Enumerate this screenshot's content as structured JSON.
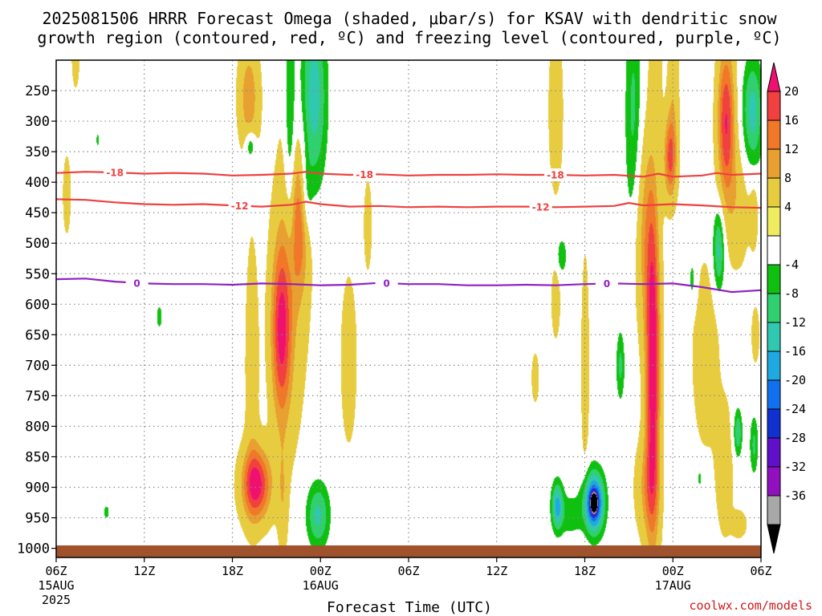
{
  "chart_data": {
    "type": "heatmap",
    "title_line1": "2025081506 HRRR Forecast Omega (shaded, μbar/s) for KSAV with dendritic snow",
    "title_line2": "growth region (contoured, red, ºC) and freezing level (contoured, purple, ºC)",
    "xlabel": "Forecast Time (UTC)",
    "credit": "coolwx.com/models",
    "y_ticks": [
      250,
      300,
      350,
      400,
      450,
      500,
      550,
      600,
      650,
      700,
      750,
      800,
      850,
      900,
      950,
      1000
    ],
    "y_range_hpa": [
      200,
      1015
    ],
    "x_range_hours": [
      0,
      48
    ],
    "x_ticks": [
      {
        "hour": 0,
        "label": "06Z",
        "sub1": "15AUG",
        "sub2": "2025"
      },
      {
        "hour": 6,
        "label": "12Z",
        "sub1": "",
        "sub2": ""
      },
      {
        "hour": 12,
        "label": "18Z",
        "sub1": "",
        "sub2": ""
      },
      {
        "hour": 18,
        "label": "00Z",
        "sub1": "16AUG",
        "sub2": ""
      },
      {
        "hour": 24,
        "label": "06Z",
        "sub1": "",
        "sub2": ""
      },
      {
        "hour": 30,
        "label": "12Z",
        "sub1": "",
        "sub2": ""
      },
      {
        "hour": 36,
        "label": "18Z",
        "sub1": "",
        "sub2": ""
      },
      {
        "hour": 42,
        "label": "00Z",
        "sub1": "17AUG",
        "sub2": ""
      },
      {
        "hour": 48,
        "label": "06Z",
        "sub1": "",
        "sub2": ""
      }
    ],
    "colorbar": {
      "labels": [
        "20",
        "16",
        "12",
        "8",
        "4",
        "-4",
        "-8",
        "-12",
        "-16",
        "-20",
        "-24",
        "-28",
        "-32",
        "-36"
      ],
      "colors": [
        "#f01070",
        "#f04040",
        "#f07828",
        "#e8a030",
        "#e8cc40",
        "#f0ec60",
        "#ffffff",
        "#10c010",
        "#30d070",
        "#30c8b0",
        "#20a8e0",
        "#1070f0",
        "#1030d0",
        "#6010c8",
        "#9010c0",
        "#a8a8a8",
        "#000000"
      ]
    },
    "contours": [
      {
        "name": "-18",
        "color": "#ee4040",
        "points": [
          [
            0,
            385
          ],
          [
            2,
            383
          ],
          [
            4,
            384
          ],
          [
            6,
            386
          ],
          [
            8,
            385
          ],
          [
            10,
            386
          ],
          [
            12,
            389
          ],
          [
            14,
            388
          ],
          [
            16,
            386
          ],
          [
            17,
            383
          ],
          [
            18,
            386
          ],
          [
            20,
            388
          ],
          [
            22,
            387
          ],
          [
            24,
            389
          ],
          [
            26,
            388
          ],
          [
            28,
            388
          ],
          [
            30,
            387
          ],
          [
            32,
            388
          ],
          [
            34,
            388
          ],
          [
            36,
            389
          ],
          [
            38,
            388
          ],
          [
            40,
            391
          ],
          [
            41,
            386
          ],
          [
            42,
            391
          ],
          [
            44,
            389
          ],
          [
            45,
            385
          ],
          [
            46,
            388
          ],
          [
            48,
            386
          ]
        ],
        "labels_at_hour": [
          4,
          21,
          34
        ]
      },
      {
        "name": "-12",
        "color": "#ee4040",
        "points": [
          [
            0,
            428
          ],
          [
            2,
            429
          ],
          [
            4,
            433
          ],
          [
            6,
            436
          ],
          [
            8,
            437
          ],
          [
            10,
            436
          ],
          [
            12,
            438
          ],
          [
            14,
            440
          ],
          [
            16,
            437
          ],
          [
            17,
            432
          ],
          [
            18,
            436
          ],
          [
            20,
            440
          ],
          [
            22,
            439
          ],
          [
            24,
            441
          ],
          [
            26,
            440
          ],
          [
            28,
            441
          ],
          [
            30,
            440
          ],
          [
            32,
            440
          ],
          [
            34,
            441
          ],
          [
            36,
            440
          ],
          [
            38,
            439
          ],
          [
            39,
            434
          ],
          [
            40,
            438
          ],
          [
            42,
            436
          ],
          [
            44,
            438
          ],
          [
            46,
            441
          ],
          [
            48,
            442
          ]
        ],
        "labels_at_hour": [
          12.5,
          33
        ]
      },
      {
        "name": "0",
        "color": "#9020c0",
        "points": [
          [
            0,
            559
          ],
          [
            2,
            558
          ],
          [
            4,
            563
          ],
          [
            6,
            566
          ],
          [
            8,
            567
          ],
          [
            10,
            567
          ],
          [
            12,
            568
          ],
          [
            14,
            566
          ],
          [
            16,
            567
          ],
          [
            18,
            569
          ],
          [
            20,
            568
          ],
          [
            22,
            565
          ],
          [
            24,
            567
          ],
          [
            26,
            567
          ],
          [
            28,
            569
          ],
          [
            30,
            569
          ],
          [
            32,
            568
          ],
          [
            34,
            569
          ],
          [
            36,
            567
          ],
          [
            38,
            566
          ],
          [
            40,
            567
          ],
          [
            42,
            566
          ],
          [
            44,
            572
          ],
          [
            46,
            580
          ],
          [
            48,
            577
          ]
        ],
        "labels_at_hour": [
          5.5,
          22.5,
          37.5
        ]
      }
    ],
    "omega_blobs": [
      {
        "hour": 13.6,
        "p": 895,
        "sx": 1.0,
        "sp": 60,
        "v": 22
      },
      {
        "hour": 13.3,
        "p": 700,
        "sx": 0.5,
        "sp": 230,
        "v": 5
      },
      {
        "hour": 13.1,
        "p": 260,
        "sx": 0.7,
        "sp": 90,
        "v": 11
      },
      {
        "hour": 13.2,
        "p": 340,
        "sx": 0.35,
        "sp": 25,
        "v": -11
      },
      {
        "hour": 15.3,
        "p": 645,
        "sx": 0.7,
        "sp": 150,
        "v": 19
      },
      {
        "hour": 16.6,
        "p": 460,
        "sx": 0.6,
        "sp": 120,
        "v": 12
      },
      {
        "hour": 16.0,
        "p": 540,
        "sx": 1.2,
        "sp": 280,
        "v": 6
      },
      {
        "hour": 15.4,
        "p": 920,
        "sx": 0.35,
        "sp": 90,
        "v": 6
      },
      {
        "hour": 15.9,
        "p": 300,
        "sx": 0.35,
        "sp": 190,
        "v": -10
      },
      {
        "hour": 17.5,
        "p": 260,
        "sx": 0.9,
        "sp": 150,
        "v": -15
      },
      {
        "hour": 17.0,
        "p": 420,
        "sx": 0.4,
        "sp": 70,
        "v": -8
      },
      {
        "hour": 17.8,
        "p": 945,
        "sx": 0.8,
        "sp": 55,
        "v": -13
      },
      {
        "hour": 19.9,
        "p": 690,
        "sx": 0.6,
        "sp": 150,
        "v": 5
      },
      {
        "hour": 21.2,
        "p": 470,
        "sx": 0.3,
        "sp": 80,
        "v": 5
      },
      {
        "hour": 7.0,
        "p": 620,
        "sx": 0.25,
        "sp": 25,
        "v": -6
      },
      {
        "hour": 1.3,
        "p": 190,
        "sx": 0.3,
        "sp": 60,
        "v": 5
      },
      {
        "hour": 0.7,
        "p": 420,
        "sx": 0.3,
        "sp": 70,
        "v": 5
      },
      {
        "hour": 2.8,
        "p": 330,
        "sx": 0.12,
        "sp": 14,
        "v": -6
      },
      {
        "hour": 3.4,
        "p": 940,
        "sx": 0.2,
        "sp": 12,
        "v": -7
      },
      {
        "hour": 34.0,
        "p": 280,
        "sx": 0.5,
        "sp": 140,
        "v": 6
      },
      {
        "hour": 34.0,
        "p": 595,
        "sx": 0.3,
        "sp": 60,
        "v": 6
      },
      {
        "hour": 32.6,
        "p": 720,
        "sx": 0.25,
        "sp": 40,
        "v": 6
      },
      {
        "hour": 34.4,
        "p": 520,
        "sx": 0.35,
        "sp": 30,
        "v": -8
      },
      {
        "hour": 35.0,
        "p": 945,
        "sx": 0.8,
        "sp": 40,
        "v": -6
      },
      {
        "hour": 34.1,
        "p": 930,
        "sx": 0.4,
        "sp": 40,
        "v": -17
      },
      {
        "hour": 36.6,
        "p": 925,
        "sx": 0.7,
        "sp": 50,
        "v": -28
      },
      {
        "hour": 36.6,
        "p": 925,
        "sx": 0.2,
        "sp": 14,
        "v": -40
      },
      {
        "hour": 36.0,
        "p": 700,
        "sx": 0.3,
        "sp": 200,
        "v": 5
      },
      {
        "hour": 38.4,
        "p": 700,
        "sx": 0.3,
        "sp": 60,
        "v": -9
      },
      {
        "hour": 40.6,
        "p": 700,
        "sx": 0.5,
        "sp": 280,
        "v": 24
      },
      {
        "hour": 40.2,
        "p": 900,
        "sx": 0.8,
        "sp": 80,
        "v": 8
      },
      {
        "hour": 39.8,
        "p": 470,
        "sx": 0.8,
        "sp": 170,
        "v": 10
      },
      {
        "hour": 39.3,
        "p": 330,
        "sx": 0.6,
        "sp": 230,
        "v": -11
      },
      {
        "hour": 41.8,
        "p": 360,
        "sx": 0.45,
        "sp": 70,
        "v": 17
      },
      {
        "hour": 42.0,
        "p": 240,
        "sx": 0.4,
        "sp": 100,
        "v": 6
      },
      {
        "hour": 40.8,
        "p": 220,
        "sx": 0.4,
        "sp": 80,
        "v": 6
      },
      {
        "hour": 45.6,
        "p": 300,
        "sx": 0.6,
        "sp": 130,
        "v": 20
      },
      {
        "hour": 46.4,
        "p": 440,
        "sx": 0.8,
        "sp": 100,
        "v": 6
      },
      {
        "hour": 44.2,
        "p": 680,
        "sx": 0.9,
        "sp": 150,
        "v": 6
      },
      {
        "hour": 45.5,
        "p": 870,
        "sx": 0.6,
        "sp": 110,
        "v": 6
      },
      {
        "hour": 47.4,
        "p": 285,
        "sx": 0.7,
        "sp": 90,
        "v": -14
      },
      {
        "hour": 47.5,
        "p": 450,
        "sx": 0.3,
        "sp": 60,
        "v": 5
      },
      {
        "hour": 47.6,
        "p": 650,
        "sx": 0.3,
        "sp": 50,
        "v": 5
      },
      {
        "hour": 47.5,
        "p": 830,
        "sx": 0.3,
        "sp": 50,
        "v": -9
      },
      {
        "hour": 45.1,
        "p": 510,
        "sx": 0.4,
        "sp": 70,
        "v": -14
      },
      {
        "hour": 46.4,
        "p": 810,
        "sx": 0.3,
        "sp": 40,
        "v": -12
      },
      {
        "hour": 43.3,
        "p": 560,
        "sx": 0.3,
        "sp": 45,
        "v": -6
      },
      {
        "hour": 43.8,
        "p": 885,
        "sx": 0.15,
        "sp": 14,
        "v": -7
      },
      {
        "hour": 46.5,
        "p": 960,
        "sx": 0.5,
        "sp": 22,
        "v": 6
      }
    ]
  }
}
